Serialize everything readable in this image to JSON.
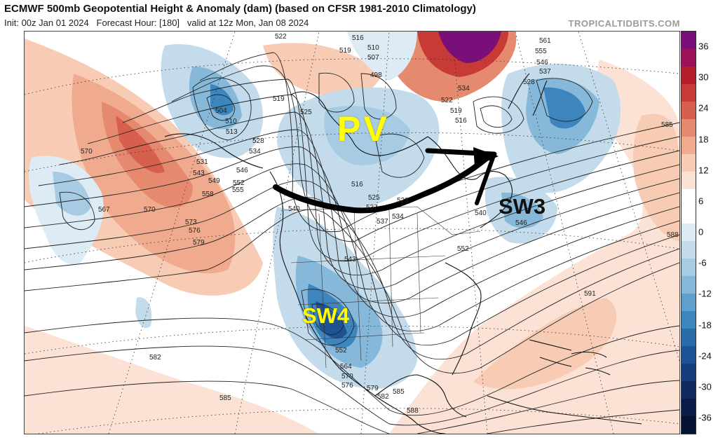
{
  "header": {
    "title": "ECMWF 500mb Geopotential Height & Anomaly (dam) (based on CFSR 1981-2010 Climatology)",
    "init": "Init: 00z Jan 01 2024",
    "forecast_hour": "Forecast Hour: [180]",
    "valid": "valid at 12z Mon, Jan 08 2024",
    "credit": "TROPICALTIDBITS.COM"
  },
  "annotations": {
    "pv": "PV",
    "sw3": "SW3",
    "sw4": "SW4"
  },
  "colorbar": {
    "ticks": [
      "36",
      "30",
      "24",
      "18",
      "12",
      "6",
      "0",
      "-6",
      "-12",
      "-18",
      "-24",
      "-30",
      "-36"
    ],
    "colors": [
      "#7a0f7a",
      "#9c1258",
      "#b51e2b",
      "#c83a35",
      "#d6604d",
      "#e58a6f",
      "#f0ab8f",
      "#f7cbb4",
      "#fbe2d4",
      "#ffffff",
      "#ffffff",
      "#dcebf4",
      "#c3dbea",
      "#a6cbe2",
      "#86b8d9",
      "#5f9fcc",
      "#3d85bd",
      "#2a6ba9",
      "#1d5394",
      "#173d7a",
      "#112a60",
      "#0b1c48",
      "#061233"
    ]
  },
  "contour_labels": [
    "522",
    "516",
    "510",
    "507",
    "498",
    "519",
    "525",
    "504",
    "510",
    "513",
    "519",
    "528",
    "534",
    "531",
    "543",
    "546",
    "549",
    "552",
    "555",
    "558",
    "570",
    "567",
    "570",
    "573",
    "576",
    "579",
    "537",
    "540",
    "516",
    "525",
    "528",
    "537",
    "534",
    "543",
    "552",
    "561",
    "555",
    "546",
    "537",
    "528",
    "534",
    "522",
    "519",
    "516",
    "585",
    "588",
    "591",
    "546",
    "540",
    "552",
    "564",
    "570",
    "576",
    "579",
    "582",
    "585",
    "588",
    "582",
    "585"
  ]
}
